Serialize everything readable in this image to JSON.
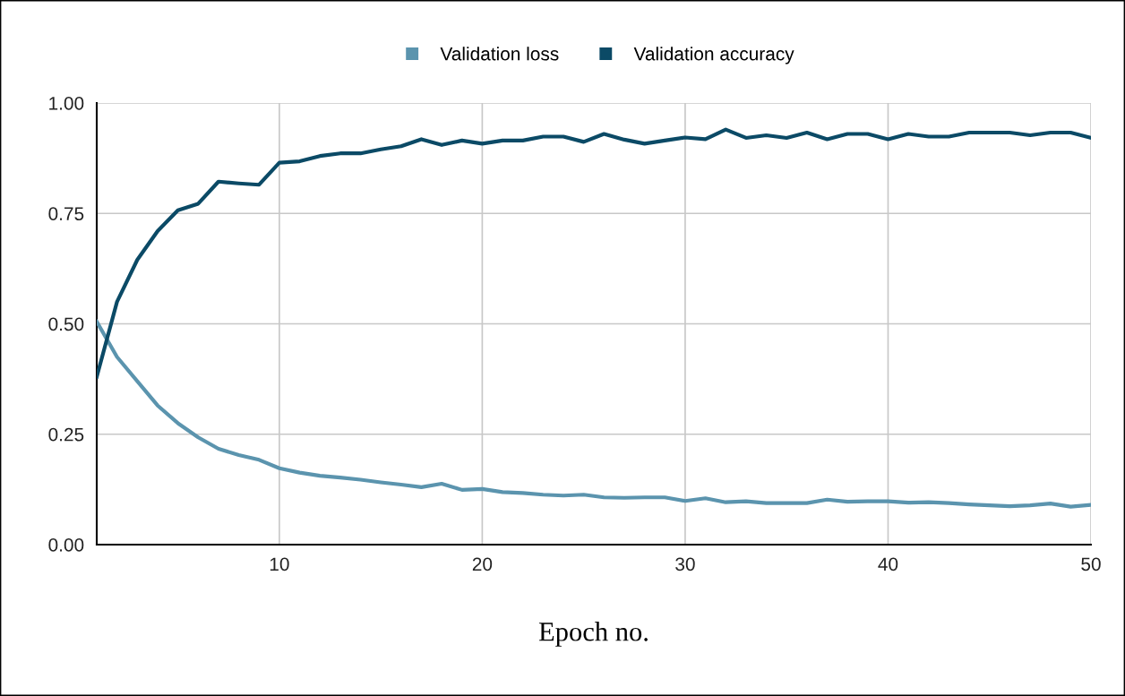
{
  "chart_data": {
    "type": "line",
    "xlabel": "Epoch no.",
    "x": [
      1,
      2,
      3,
      4,
      5,
      6,
      7,
      8,
      9,
      10,
      11,
      12,
      13,
      14,
      15,
      16,
      17,
      18,
      19,
      20,
      21,
      22,
      23,
      24,
      25,
      26,
      27,
      28,
      29,
      30,
      31,
      32,
      33,
      34,
      35,
      36,
      37,
      38,
      39,
      40,
      41,
      42,
      43,
      44,
      45,
      46,
      47,
      48,
      49,
      50
    ],
    "series": [
      {
        "name": "Validation loss",
        "color": "#5b94ae",
        "values": [
          0.505,
          0.425,
          0.37,
          0.315,
          0.275,
          0.243,
          0.217,
          0.203,
          0.192,
          0.173,
          0.163,
          0.156,
          0.152,
          0.147,
          0.141,
          0.136,
          0.13,
          0.138,
          0.124,
          0.126,
          0.119,
          0.117,
          0.113,
          0.111,
          0.113,
          0.107,
          0.106,
          0.107,
          0.107,
          0.099,
          0.105,
          0.096,
          0.098,
          0.094,
          0.094,
          0.094,
          0.102,
          0.097,
          0.098,
          0.098,
          0.095,
          0.096,
          0.094,
          0.091,
          0.089,
          0.087,
          0.089,
          0.093,
          0.086,
          0.09
        ]
      },
      {
        "name": "Validation accuracy",
        "color": "#0b4a66",
        "values": [
          0.38,
          0.55,
          0.645,
          0.71,
          0.757,
          0.772,
          0.822,
          0.818,
          0.815,
          0.865,
          0.868,
          0.88,
          0.886,
          0.886,
          0.895,
          0.902,
          0.918,
          0.905,
          0.915,
          0.908,
          0.915,
          0.915,
          0.924,
          0.924,
          0.912,
          0.93,
          0.917,
          0.908,
          0.915,
          0.922,
          0.918,
          0.94,
          0.921,
          0.927,
          0.921,
          0.933,
          0.918,
          0.93,
          0.93,
          0.918,
          0.93,
          0.924,
          0.924,
          0.933,
          0.933,
          0.933,
          0.927,
          0.933,
          0.933,
          0.921
        ]
      }
    ],
    "xlim": [
      1,
      50
    ],
    "xticks": [
      10,
      20,
      30,
      40,
      50
    ],
    "ylim": [
      0,
      1
    ],
    "yticks": [
      {
        "value": 0,
        "label": "0.00"
      },
      {
        "value": 0.25,
        "label": "0.25"
      },
      {
        "value": 0.5,
        "label": "0.50"
      },
      {
        "value": 0.75,
        "label": "0.75"
      },
      {
        "value": 1,
        "label": "1.00"
      }
    ],
    "grid": true,
    "legend": "top",
    "marker": "none",
    "line_style": "solid"
  }
}
